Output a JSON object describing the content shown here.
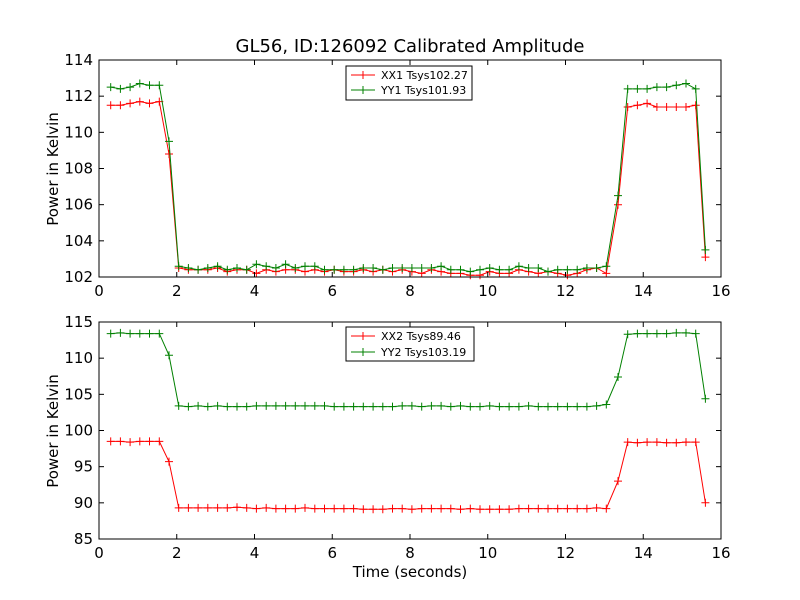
{
  "chart_data": [
    {
      "type": "line",
      "title": "GL56, ID:126092 Calibrated Amplitude",
      "xlabel": "",
      "ylabel": "Power in Kelvin",
      "xlim": [
        0,
        16
      ],
      "ylim": [
        102,
        114
      ],
      "xticks": [
        "0",
        "2",
        "4",
        "6",
        "8",
        "10",
        "12",
        "14",
        "16"
      ],
      "yticks": [
        "102",
        "104",
        "106",
        "108",
        "110",
        "112",
        "114"
      ],
      "legend_position": "top-center",
      "grid": false,
      "x": [
        0.3,
        0.55,
        0.8,
        1.05,
        1.3,
        1.55,
        1.8,
        2.05,
        2.3,
        2.55,
        2.8,
        3.05,
        3.3,
        3.55,
        3.8,
        4.05,
        4.3,
        4.55,
        4.8,
        5.05,
        5.3,
        5.55,
        5.8,
        6.05,
        6.3,
        6.55,
        6.8,
        7.05,
        7.3,
        7.55,
        7.8,
        8.05,
        8.3,
        8.55,
        8.8,
        9.05,
        9.3,
        9.55,
        9.8,
        10.05,
        10.3,
        10.55,
        10.8,
        11.05,
        11.3,
        11.55,
        11.8,
        12.05,
        12.3,
        12.55,
        12.8,
        13.05,
        13.35,
        13.6,
        13.85,
        14.1,
        14.35,
        14.6,
        14.85,
        15.1,
        15.35,
        15.6
      ],
      "series": [
        {
          "name": "XX1 Tsys102.27",
          "color": "#ff0000",
          "values": [
            111.5,
            111.5,
            111.6,
            111.7,
            111.6,
            111.7,
            108.8,
            102.5,
            102.4,
            102.4,
            102.4,
            102.5,
            102.3,
            102.4,
            102.4,
            102.2,
            102.4,
            102.3,
            102.4,
            102.4,
            102.3,
            102.4,
            102.3,
            102.4,
            102.3,
            102.3,
            102.4,
            102.3,
            102.4,
            102.3,
            102.4,
            102.3,
            102.2,
            102.4,
            102.3,
            102.2,
            102.2,
            102.1,
            102.1,
            102.3,
            102.2,
            102.2,
            102.4,
            102.3,
            102.2,
            102.3,
            102.2,
            102.1,
            102.2,
            102.4,
            102.5,
            102.2,
            106.0,
            111.4,
            111.5,
            111.6,
            111.4,
            111.4,
            111.4,
            111.4,
            111.5,
            103.1
          ]
        },
        {
          "name": "YY1 Tsys101.93",
          "color": "#008000",
          "values": [
            112.5,
            112.4,
            112.5,
            112.7,
            112.6,
            112.6,
            109.5,
            102.6,
            102.5,
            102.4,
            102.5,
            102.6,
            102.4,
            102.5,
            102.4,
            102.7,
            102.6,
            102.5,
            102.7,
            102.5,
            102.6,
            102.6,
            102.4,
            102.4,
            102.4,
            102.4,
            102.5,
            102.5,
            102.4,
            102.5,
            102.5,
            102.5,
            102.5,
            102.5,
            102.6,
            102.4,
            102.4,
            102.3,
            102.4,
            102.5,
            102.4,
            102.4,
            102.6,
            102.5,
            102.5,
            102.3,
            102.4,
            102.4,
            102.4,
            102.5,
            102.5,
            102.6,
            106.5,
            112.4,
            112.4,
            112.4,
            112.5,
            112.5,
            112.6,
            112.7,
            112.4,
            103.5
          ]
        }
      ]
    },
    {
      "type": "line",
      "title": "",
      "xlabel": "Time (seconds)",
      "ylabel": "Power in Kelvin",
      "xlim": [
        0,
        16
      ],
      "ylim": [
        85,
        115
      ],
      "xticks": [
        "0",
        "2",
        "4",
        "6",
        "8",
        "10",
        "12",
        "14",
        "16"
      ],
      "yticks": [
        "85",
        "90",
        "95",
        "100",
        "105",
        "110",
        "115"
      ],
      "legend_position": "top-center",
      "grid": false,
      "x": [
        0.3,
        0.55,
        0.8,
        1.05,
        1.3,
        1.55,
        1.8,
        2.05,
        2.3,
        2.55,
        2.8,
        3.05,
        3.3,
        3.55,
        3.8,
        4.05,
        4.3,
        4.55,
        4.8,
        5.05,
        5.3,
        5.55,
        5.8,
        6.05,
        6.3,
        6.55,
        6.8,
        7.05,
        7.3,
        7.55,
        7.8,
        8.05,
        8.3,
        8.55,
        8.8,
        9.05,
        9.3,
        9.55,
        9.8,
        10.05,
        10.3,
        10.55,
        10.8,
        11.05,
        11.3,
        11.55,
        11.8,
        12.05,
        12.3,
        12.55,
        12.8,
        13.05,
        13.35,
        13.6,
        13.85,
        14.1,
        14.35,
        14.6,
        14.85,
        15.1,
        15.35,
        15.6
      ],
      "series": [
        {
          "name": "XX2 Tsys89.46",
          "color": "#ff0000",
          "values": [
            98.5,
            98.5,
            98.4,
            98.5,
            98.5,
            98.5,
            95.7,
            89.3,
            89.3,
            89.3,
            89.3,
            89.3,
            89.3,
            89.4,
            89.3,
            89.2,
            89.3,
            89.2,
            89.2,
            89.2,
            89.3,
            89.2,
            89.2,
            89.2,
            89.2,
            89.2,
            89.1,
            89.1,
            89.1,
            89.2,
            89.2,
            89.1,
            89.2,
            89.2,
            89.2,
            89.2,
            89.1,
            89.2,
            89.1,
            89.1,
            89.1,
            89.1,
            89.2,
            89.2,
            89.2,
            89.2,
            89.2,
            89.2,
            89.2,
            89.2,
            89.3,
            89.2,
            93.0,
            98.4,
            98.3,
            98.4,
            98.4,
            98.3,
            98.3,
            98.4,
            98.4,
            90.0
          ]
        },
        {
          "name": "YY2 Tsys103.19",
          "color": "#008000",
          "values": [
            113.4,
            113.5,
            113.4,
            113.4,
            113.4,
            113.4,
            110.4,
            103.4,
            103.3,
            103.4,
            103.3,
            103.4,
            103.3,
            103.3,
            103.3,
            103.4,
            103.4,
            103.4,
            103.4,
            103.4,
            103.4,
            103.4,
            103.4,
            103.3,
            103.3,
            103.3,
            103.3,
            103.3,
            103.3,
            103.3,
            103.4,
            103.4,
            103.3,
            103.4,
            103.4,
            103.3,
            103.4,
            103.3,
            103.3,
            103.4,
            103.3,
            103.3,
            103.3,
            103.4,
            103.3,
            103.3,
            103.3,
            103.3,
            103.3,
            103.3,
            103.4,
            103.6,
            107.4,
            113.3,
            113.4,
            113.4,
            113.4,
            113.4,
            113.5,
            113.5,
            113.4,
            104.4
          ]
        }
      ]
    }
  ]
}
